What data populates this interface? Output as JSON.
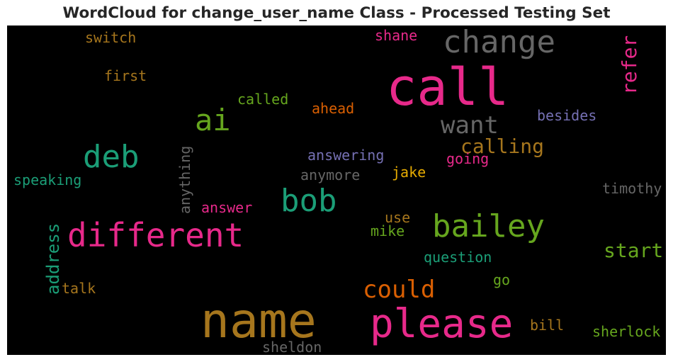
{
  "title": "WordCloud for change_user_name Class - Processed Testing Set",
  "colors": {
    "pink": "#e7298a",
    "grey": "#666666",
    "olive": "#a6761d",
    "green": "#66a61e",
    "teal": "#1b9e77",
    "orange": "#d95f02",
    "purple": "#7570b3",
    "gold": "#e6ab02"
  },
  "words": [
    {
      "text": "call",
      "color": "pink"
    },
    {
      "text": "name",
      "color": "olive"
    },
    {
      "text": "please",
      "color": "pink"
    },
    {
      "text": "change",
      "color": "grey"
    },
    {
      "text": "different",
      "color": "pink"
    },
    {
      "text": "bailey",
      "color": "green"
    },
    {
      "text": "bob",
      "color": "teal"
    },
    {
      "text": "deb",
      "color": "teal"
    },
    {
      "text": "ai",
      "color": "green"
    },
    {
      "text": "want",
      "color": "grey"
    },
    {
      "text": "could",
      "color": "orange"
    },
    {
      "text": "calling",
      "color": "olive"
    },
    {
      "text": "refer",
      "color": "pink"
    },
    {
      "text": "address",
      "color": "teal"
    },
    {
      "text": "start",
      "color": "green"
    },
    {
      "text": "anything",
      "color": "grey"
    },
    {
      "text": "switch",
      "color": "olive"
    },
    {
      "text": "first",
      "color": "olive"
    },
    {
      "text": "called",
      "color": "green"
    },
    {
      "text": "ahead",
      "color": "orange"
    },
    {
      "text": "besides",
      "color": "purple"
    },
    {
      "text": "answering",
      "color": "purple"
    },
    {
      "text": "going",
      "color": "pink"
    },
    {
      "text": "anymore",
      "color": "grey"
    },
    {
      "text": "jake",
      "color": "gold"
    },
    {
      "text": "speaking",
      "color": "teal"
    },
    {
      "text": "timothy",
      "color": "grey"
    },
    {
      "text": "answer",
      "color": "pink"
    },
    {
      "text": "use",
      "color": "olive"
    },
    {
      "text": "mike",
      "color": "green"
    },
    {
      "text": "question",
      "color": "teal"
    },
    {
      "text": "talk",
      "color": "olive"
    },
    {
      "text": "go",
      "color": "green"
    },
    {
      "text": "bill",
      "color": "olive"
    },
    {
      "text": "sherlock",
      "color": "green"
    },
    {
      "text": "sheldon",
      "color": "grey"
    },
    {
      "text": "shane",
      "color": "pink"
    }
  ]
}
